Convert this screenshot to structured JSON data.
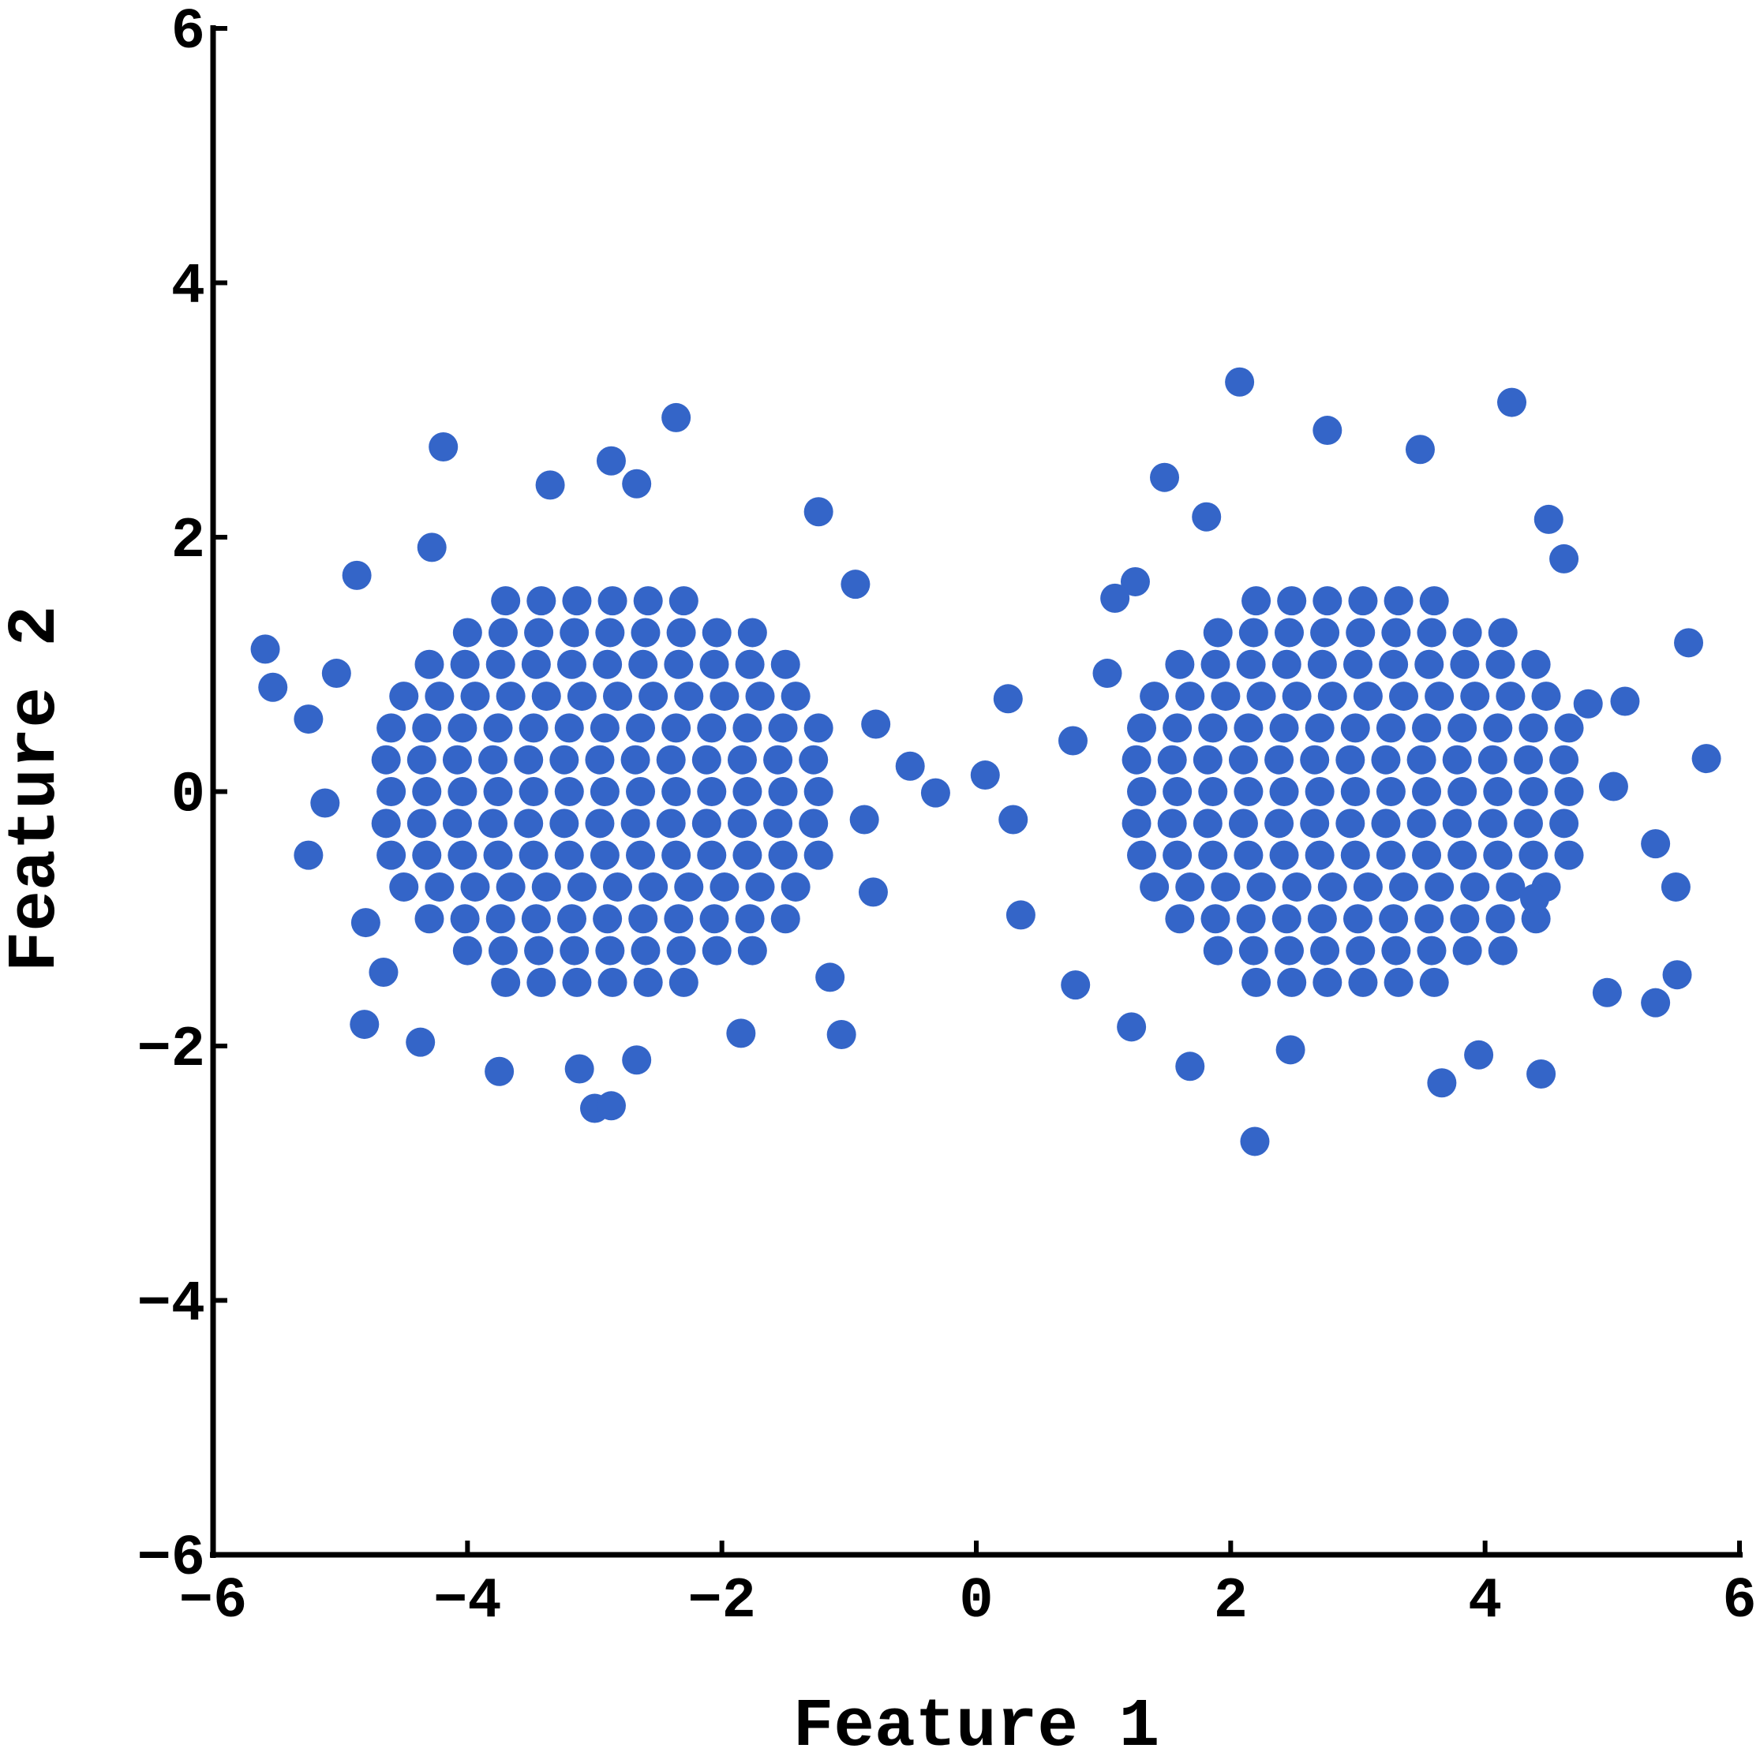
{
  "chart_data": {
    "type": "scatter",
    "xlabel": "Feature 1",
    "ylabel": "Feature 2",
    "color": "#3465c8",
    "xlim": [
      -6,
      6
    ],
    "ylim": [
      -6,
      6
    ],
    "xticks": [
      {
        "value": -6,
        "label": "−6"
      },
      {
        "value": -4,
        "label": "−4"
      },
      {
        "value": -2,
        "label": "−2"
      },
      0,
      2,
      4,
      6
    ],
    "yticks": [
      {
        "value": -6,
        "label": "−6"
      },
      {
        "value": -4,
        "label": "−4"
      },
      {
        "value": -2,
        "label": "−2"
      },
      0,
      2,
      4,
      6
    ],
    "x": [
      -3.7,
      -3.42,
      -3.14,
      -2.86,
      -2.58,
      -2.3,
      -4,
      -3.72,
      -3.44,
      -3.16,
      -2.88,
      -2.6,
      -2.32,
      -2.04,
      -1.76,
      -4.3,
      -4.02,
      -3.74,
      -3.46,
      -3.18,
      -2.9,
      -2.62,
      -2.34,
      -2.06,
      -1.78,
      -1.5,
      -4.5,
      -4.22,
      -3.94,
      -3.66,
      -3.38,
      -3.1,
      -2.82,
      -2.54,
      -2.26,
      -1.98,
      -1.7,
      -1.42,
      -4.6,
      -4.32,
      -4.04,
      -3.76,
      -3.48,
      -3.2,
      -2.92,
      -2.64,
      -2.36,
      -2.08,
      -1.8,
      -1.52,
      -1.24,
      -4.64,
      -4.36,
      -4.08,
      -3.8,
      -3.52,
      -3.24,
      -2.96,
      -2.68,
      -2.4,
      -2.12,
      -1.84,
      -1.56,
      -1.28,
      -4.6,
      -4.32,
      -4.04,
      -3.76,
      -3.48,
      -3.2,
      -2.92,
      -2.64,
      -2.36,
      -2.08,
      -1.8,
      -1.52,
      -1.24,
      -4.64,
      -4.36,
      -4.08,
      -3.8,
      -3.52,
      -3.24,
      -2.96,
      -2.68,
      -2.4,
      -2.12,
      -1.84,
      -1.56,
      -1.28,
      -4.6,
      -4.32,
      -4.04,
      -3.76,
      -3.48,
      -3.2,
      -2.92,
      -2.64,
      -2.36,
      -2.08,
      -1.8,
      -1.52,
      -1.24,
      -4.5,
      -4.22,
      -3.94,
      -3.66,
      -3.38,
      -3.1,
      -2.82,
      -2.54,
      -2.26,
      -1.98,
      -1.7,
      -1.42,
      -4.3,
      -4.02,
      -3.74,
      -3.46,
      -3.18,
      -2.9,
      -2.62,
      -2.34,
      -2.06,
      -1.78,
      -1.5,
      -4,
      -3.72,
      -3.44,
      -3.16,
      -2.88,
      -2.6,
      -2.32,
      -2.04,
      -1.76,
      -3.7,
      -3.42,
      -3.14,
      -2.86,
      -2.58,
      -2.3,
      2.2,
      2.48,
      2.76,
      3.04,
      3.32,
      3.6,
      1.9,
      2.18,
      2.46,
      2.74,
      3.02,
      3.3,
      3.58,
      3.86,
      4.14,
      1.6,
      1.88,
      2.16,
      2.44,
      2.72,
      3,
      3.28,
      3.56,
      3.84,
      4.12,
      4.4,
      1.4,
      1.68,
      1.96,
      2.24,
      2.52,
      2.8,
      3.08,
      3.36,
      3.64,
      3.92,
      4.2,
      4.48,
      1.3,
      1.58,
      1.86,
      2.14,
      2.42,
      2.7,
      2.98,
      3.26,
      3.54,
      3.82,
      4.1,
      4.38,
      4.66,
      1.26,
      1.54,
      1.82,
      2.1,
      2.38,
      2.66,
      2.94,
      3.22,
      3.5,
      3.78,
      4.06,
      4.34,
      4.62,
      1.3,
      1.58,
      1.86,
      2.14,
      2.42,
      2.7,
      2.98,
      3.26,
      3.54,
      3.82,
      4.1,
      4.38,
      4.66,
      1.26,
      1.54,
      1.82,
      2.1,
      2.38,
      2.66,
      2.94,
      3.22,
      3.5,
      3.78,
      4.06,
      4.34,
      4.62,
      1.3,
      1.58,
      1.86,
      2.14,
      2.42,
      2.7,
      2.98,
      3.26,
      3.54,
      3.82,
      4.1,
      4.38,
      4.66,
      1.4,
      1.68,
      1.96,
      2.24,
      2.52,
      2.8,
      3.08,
      3.36,
      3.64,
      3.92,
      4.2,
      4.48,
      1.6,
      1.88,
      2.16,
      2.44,
      2.72,
      3,
      3.28,
      3.56,
      3.84,
      4.12,
      4.4,
      1.9,
      2.18,
      2.46,
      2.74,
      3.02,
      3.3,
      3.58,
      3.86,
      4.14,
      2.2,
      2.48,
      2.76,
      3.04,
      3.32,
      3.6,
      -5.59,
      -5.53,
      -5.25,
      -5.12,
      -4.87,
      -4.81,
      -4.19,
      -4.28,
      -2.36,
      -2.87,
      -2.67,
      -3.35,
      -3,
      -2.87,
      -3.12,
      -3.75,
      -4.37,
      -1.06,
      -0.95,
      -1.24,
      -0.32,
      -0.52,
      -0.81,
      -1.15,
      -1.85,
      -2.67,
      -4.66,
      -4.8,
      -5.03,
      -5.25,
      -0.88,
      -0.79,
      0.07,
      0.25,
      0.29,
      0.35,
      2.07,
      4.21,
      2.76,
      3.49,
      1.48,
      1.81,
      4.5,
      5.6,
      5.74,
      5.1,
      5.5,
      5.34,
      5.51,
      5.34,
      4.96,
      4.44,
      3.66,
      2.19,
      1.68,
      1.22,
      0.78,
      0.76,
      1.03,
      1.25,
      1.09,
      3.95,
      2.47,
      5.01,
      4.81,
      4.39,
      4.62
    ],
    "values": [
      1.5,
      1.5,
      1.5,
      1.5,
      1.5,
      1.5,
      1.25,
      1.25,
      1.25,
      1.25,
      1.25,
      1.25,
      1.25,
      1.25,
      1.25,
      1,
      1,
      1,
      1,
      1,
      1,
      1,
      1,
      1,
      1,
      1,
      0.75,
      0.75,
      0.75,
      0.75,
      0.75,
      0.75,
      0.75,
      0.75,
      0.75,
      0.75,
      0.75,
      0.75,
      0.5,
      0.5,
      0.5,
      0.5,
      0.5,
      0.5,
      0.5,
      0.5,
      0.5,
      0.5,
      0.5,
      0.5,
      0.5,
      0.25,
      0.25,
      0.25,
      0.25,
      0.25,
      0.25,
      0.25,
      0.25,
      0.25,
      0.25,
      0.25,
      0.25,
      0.25,
      0,
      0,
      0,
      0,
      0,
      0,
      0,
      0,
      0,
      0,
      0,
      0,
      0,
      -0.25,
      -0.25,
      -0.25,
      -0.25,
      -0.25,
      -0.25,
      -0.25,
      -0.25,
      -0.25,
      -0.25,
      -0.25,
      -0.25,
      -0.25,
      -0.5,
      -0.5,
      -0.5,
      -0.5,
      -0.5,
      -0.5,
      -0.5,
      -0.5,
      -0.5,
      -0.5,
      -0.5,
      -0.5,
      -0.5,
      -0.75,
      -0.75,
      -0.75,
      -0.75,
      -0.75,
      -0.75,
      -0.75,
      -0.75,
      -0.75,
      -0.75,
      -0.75,
      -0.75,
      -1,
      -1,
      -1,
      -1,
      -1,
      -1,
      -1,
      -1,
      -1,
      -1,
      -1,
      -1.25,
      -1.25,
      -1.25,
      -1.25,
      -1.25,
      -1.25,
      -1.25,
      -1.25,
      -1.25,
      -1.5,
      -1.5,
      -1.5,
      -1.5,
      -1.5,
      -1.5,
      1.5,
      1.5,
      1.5,
      1.5,
      1.5,
      1.5,
      1.25,
      1.25,
      1.25,
      1.25,
      1.25,
      1.25,
      1.25,
      1.25,
      1.25,
      1,
      1,
      1,
      1,
      1,
      1,
      1,
      1,
      1,
      1,
      1,
      0.75,
      0.75,
      0.75,
      0.75,
      0.75,
      0.75,
      0.75,
      0.75,
      0.75,
      0.75,
      0.75,
      0.75,
      0.5,
      0.5,
      0.5,
      0.5,
      0.5,
      0.5,
      0.5,
      0.5,
      0.5,
      0.5,
      0.5,
      0.5,
      0.5,
      0.25,
      0.25,
      0.25,
      0.25,
      0.25,
      0.25,
      0.25,
      0.25,
      0.25,
      0.25,
      0.25,
      0.25,
      0.25,
      0,
      0,
      0,
      0,
      0,
      0,
      0,
      0,
      0,
      0,
      0,
      0,
      0,
      -0.25,
      -0.25,
      -0.25,
      -0.25,
      -0.25,
      -0.25,
      -0.25,
      -0.25,
      -0.25,
      -0.25,
      -0.25,
      -0.25,
      -0.25,
      -0.5,
      -0.5,
      -0.5,
      -0.5,
      -0.5,
      -0.5,
      -0.5,
      -0.5,
      -0.5,
      -0.5,
      -0.5,
      -0.5,
      -0.5,
      -0.75,
      -0.75,
      -0.75,
      -0.75,
      -0.75,
      -0.75,
      -0.75,
      -0.75,
      -0.75,
      -0.75,
      -0.75,
      -0.75,
      -1,
      -1,
      -1,
      -1,
      -1,
      -1,
      -1,
      -1,
      -1,
      -1,
      -1,
      -1.25,
      -1.25,
      -1.25,
      -1.25,
      -1.25,
      -1.25,
      -1.25,
      -1.25,
      -1.25,
      -1.5,
      -1.5,
      -1.5,
      -1.5,
      -1.5,
      -1.5,
      1.12,
      0.82,
      -0.5,
      -0.09,
      1.7,
      -1.83,
      2.71,
      1.92,
      2.94,
      2.6,
      2.42,
      2.41,
      -2.49,
      -2.47,
      -2.18,
      -2.2,
      -1.97,
      -1.91,
      1.63,
      2.2,
      -0.01,
      0.2,
      -0.79,
      -1.46,
      -1.9,
      -2.11,
      -1.42,
      -1.03,
      0.93,
      0.57,
      -0.22,
      0.53,
      0.13,
      0.73,
      -0.22,
      -0.97,
      3.22,
      3.06,
      2.84,
      2.69,
      2.47,
      2.16,
      2.14,
      1.17,
      0.26,
      0.71,
      -0.75,
      -0.41,
      -1.44,
      -1.66,
      -1.58,
      -2.22,
      -2.29,
      -2.75,
      -2.16,
      -1.85,
      -1.52,
      0.4,
      0.93,
      1.65,
      1.52,
      -2.07,
      -2.03,
      0.04,
      0.69,
      -0.84,
      1.83
    ]
  }
}
